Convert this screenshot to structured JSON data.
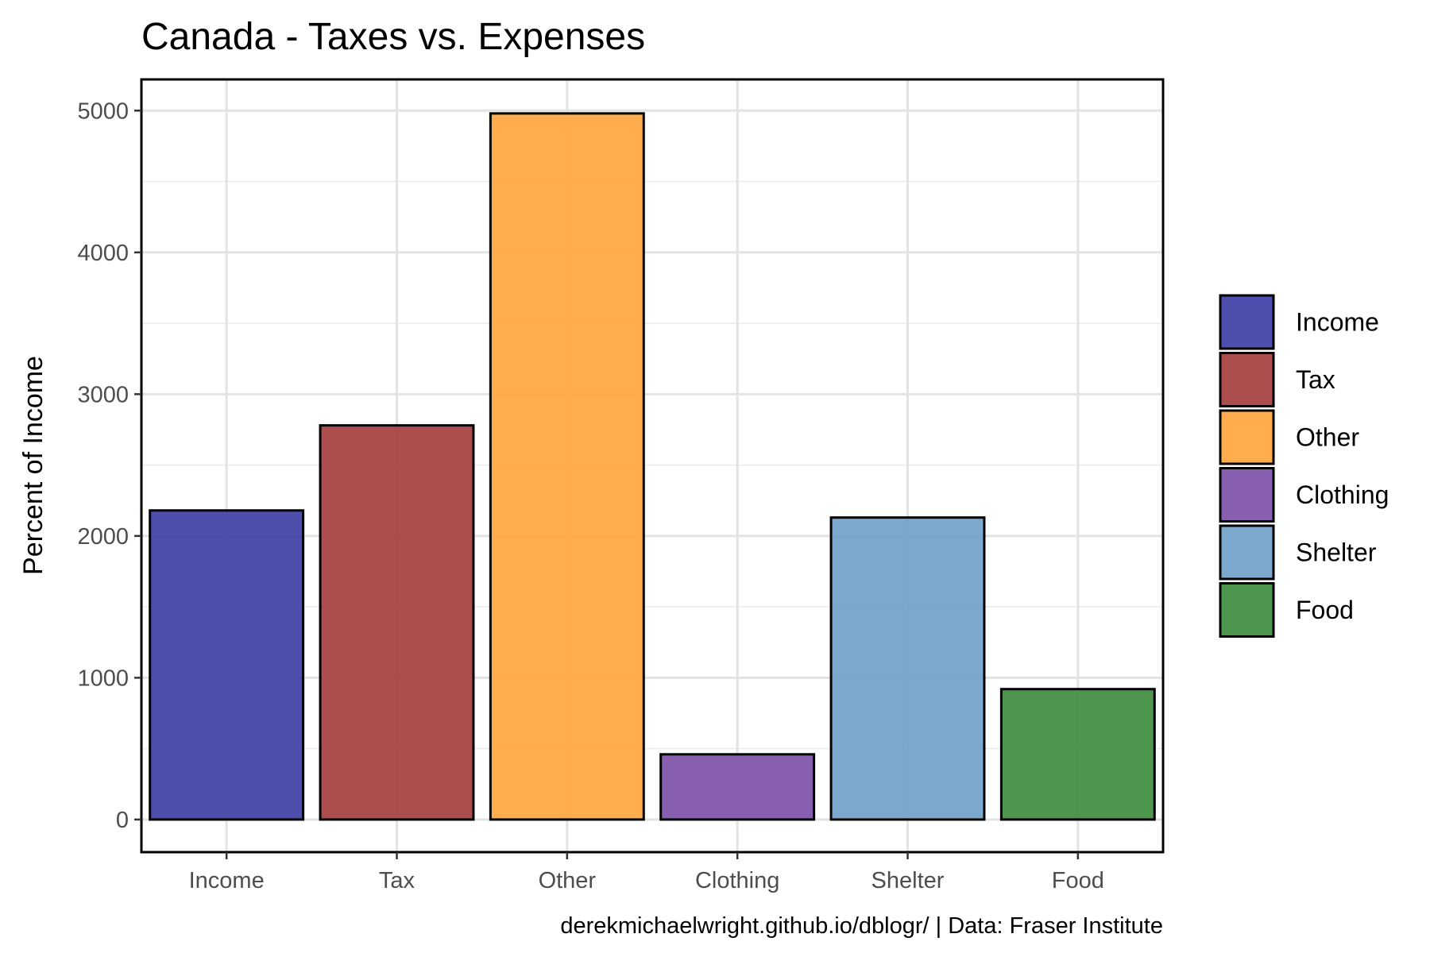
{
  "chart_data": {
    "type": "bar",
    "title": "Canada - Taxes vs. Expenses",
    "ylabel": "Percent of Income",
    "xlabel": "",
    "caption": "derekmichaelwright.github.io/dblogr/ | Data: Fraser Institute",
    "categories": [
      "Income",
      "Tax",
      "Other",
      "Clothing",
      "Shelter",
      "Food"
    ],
    "values": [
      2180,
      2780,
      4980,
      460,
      2130,
      920
    ],
    "colors": [
      "#3b3ba3",
      "#a33b3b",
      "#ffa43b",
      "#7c4fa8",
      "#6e9ec9",
      "#3b8a3b"
    ],
    "ylim": [
      -230,
      5220
    ],
    "yticks": [
      0,
      1000,
      2000,
      3000,
      4000,
      5000
    ],
    "grid": true,
    "legend": {
      "position": "right",
      "entries": [
        "Income",
        "Tax",
        "Other",
        "Clothing",
        "Shelter",
        "Food"
      ]
    }
  }
}
